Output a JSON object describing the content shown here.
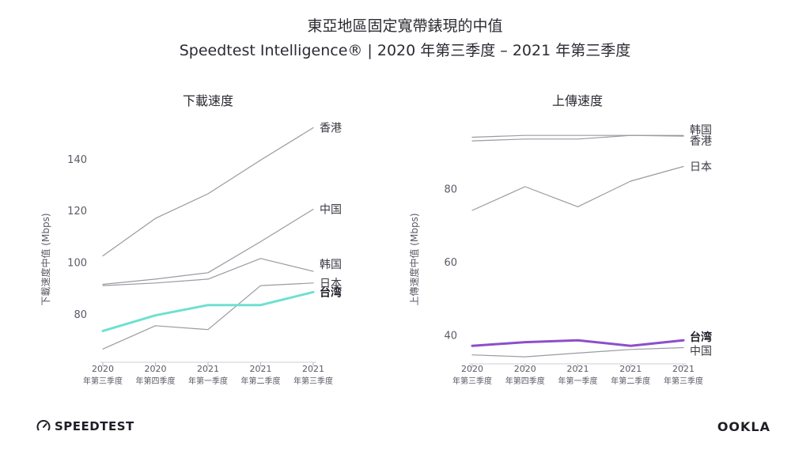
{
  "title_line1": "東亞地區固定寬帶錶現的中值",
  "title_line2": "Speedtest Intelligence® | 2020 年第三季度 – 2021 年第三季度",
  "colors": {
    "axis_text": "#5a5a66",
    "line_gray": "#9a9aa2",
    "taiwan_download": "#6fe0d0",
    "taiwan_upload": "#8d4fc9",
    "baseline": "#cfcfd4"
  },
  "logos": {
    "speedtest": "SPEEDTEST",
    "ookla": "OOKLA"
  },
  "chart_data": [
    {
      "type": "line",
      "title": "下載速度",
      "ylabel": "下載速度中值 (Mbps)",
      "xlabel": "",
      "categories": [
        [
          "2020",
          "年第三季度"
        ],
        [
          "2020",
          "年第四季度"
        ],
        [
          "2021",
          "年第一季度"
        ],
        [
          "2021",
          "年第二季度"
        ],
        [
          "2021",
          "年第三季度"
        ]
      ],
      "ylim": [
        62,
        154
      ],
      "yticks": [
        80,
        100,
        120,
        140
      ],
      "grid": false,
      "series": [
        {
          "name": "香港",
          "values": [
            102.5,
            117,
            126.5,
            139.5,
            152
          ],
          "highlight": false
        },
        {
          "name": "中国",
          "values": [
            91.5,
            93.5,
            96,
            108,
            120.5
          ],
          "highlight": false
        },
        {
          "name": "韩国",
          "values": [
            91,
            92,
            93.5,
            101.5,
            96.5
          ],
          "highlight": false
        },
        {
          "name": "日本",
          "values": [
            66.5,
            75.5,
            74,
            91,
            92
          ],
          "highlight": false
        },
        {
          "name": "台湾",
          "values": [
            73.5,
            79.5,
            83.5,
            83.5,
            88.5
          ],
          "highlight": true
        }
      ]
    },
    {
      "type": "line",
      "title": "上傳速度",
      "ylabel": "上傳速度中值 (Mbps)",
      "xlabel": "",
      "categories": [
        [
          "2020",
          "年第三季度"
        ],
        [
          "2020",
          "年第四季度"
        ],
        [
          "2021",
          "年第一季度"
        ],
        [
          "2021",
          "年第二季度"
        ],
        [
          "2021",
          "年第三季度"
        ]
      ],
      "ylim": [
        32.5,
        98
      ],
      "yticks": [
        40,
        60,
        80
      ],
      "grid": false,
      "series": [
        {
          "name": "韩国",
          "values": [
            94,
            94.5,
            94.5,
            94.5,
            94.5
          ],
          "highlight": false
        },
        {
          "name": "香港",
          "values": [
            93,
            93.5,
            93.5,
            94.5,
            94.3
          ],
          "highlight": false
        },
        {
          "name": "日本",
          "values": [
            74,
            80.5,
            75,
            82,
            86
          ],
          "highlight": false
        },
        {
          "name": "台湾",
          "values": [
            37,
            38,
            38.5,
            37,
            38.5
          ],
          "highlight": true
        },
        {
          "name": "中国",
          "values": [
            34.5,
            34,
            35,
            36,
            36.5
          ],
          "highlight": false
        }
      ]
    }
  ]
}
